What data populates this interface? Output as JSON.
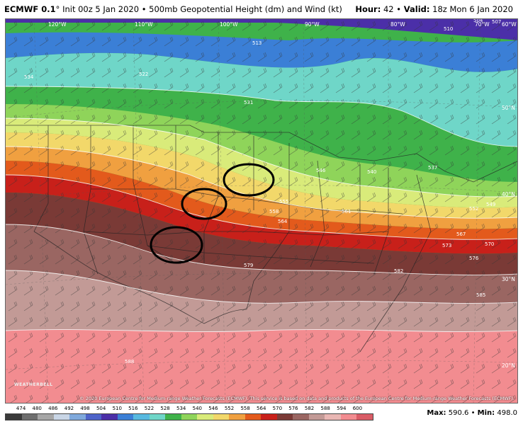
{
  "header": {
    "model": "ECMWF 0.1",
    "degree": "°",
    "info": "Init 00z 5 Jan 2020 • 500mb Geopotential Height (dm) and Wind (kt)",
    "hour_label": "Hour:",
    "hour": "42",
    "sep": "•",
    "valid_label": "Valid:",
    "valid": "18z Mon 6 Jan 2020"
  },
  "map": {
    "lon_labels": [
      "120°W",
      "110°W",
      "100°W",
      "90°W",
      "80°W",
      "70°W",
      "60°W"
    ],
    "lat_labels": [
      "50°N",
      "40°N",
      "30°N",
      "20°N"
    ],
    "contour_labels": [
      "510",
      "513",
      "522",
      "531",
      "534",
      "537",
      "540",
      "546",
      "549",
      "552",
      "555",
      "558",
      "561",
      "564",
      "567",
      "570",
      "573",
      "576",
      "579",
      "582",
      "585",
      "588",
      "504",
      "507"
    ],
    "circles": 3,
    "copyright": "© 2020 European Centre for Medium-range Weather Forecasts (ECMWF). This service is based on data and products of the European Centre for Medium-range Weather Forecasts (ECMWF).",
    "logo": "WEATHERBELL"
  },
  "legend": {
    "values": [
      "474",
      "480",
      "486",
      "492",
      "498",
      "504",
      "510",
      "516",
      "522",
      "528",
      "534",
      "540",
      "546",
      "552",
      "558",
      "564",
      "570",
      "576",
      "582",
      "588",
      "594",
      "600"
    ],
    "colors": [
      "#3a3a3a",
      "#6e6e6e",
      "#a6a6a6",
      "#c9d6e6",
      "#7fa9dc",
      "#4e63c9",
      "#4b2fa8",
      "#3b7fd6",
      "#57b9e0",
      "#6fd6c8",
      "#3fb24a",
      "#8fd45a",
      "#d9eb7a",
      "#f2d86a",
      "#f0a040",
      "#e35a1c",
      "#c8201a",
      "#7a3a36",
      "#9a6662",
      "#c29a96",
      "#e9b7b4",
      "#f28c90",
      "#d95c66"
    ]
  },
  "maxmin": {
    "max_label": "Max:",
    "max": "590.6",
    "sep": "•",
    "min_label": "Min:",
    "min": "498.0"
  }
}
